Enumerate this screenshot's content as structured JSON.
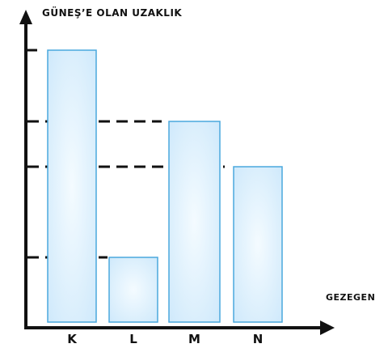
{
  "chart_data": {
    "type": "bar",
    "categories": [
      "K",
      "L",
      "M",
      "N"
    ],
    "values": [
      4.2,
      1.0,
      3.1,
      2.4
    ],
    "ylabel": "GÜNEŞ’E OLAN UZAKLIK",
    "xlabel": "GEZEGEN",
    "ylim": [
      0,
      4.5
    ],
    "reference_lines": [
      4.2,
      3.1,
      2.4,
      1.0
    ],
    "grid": false,
    "bar_fill": "#cfe9fb",
    "bar_fill_center": "#f4fbff",
    "bar_stroke": "#4aa8dd",
    "axis_color": "#111111"
  }
}
